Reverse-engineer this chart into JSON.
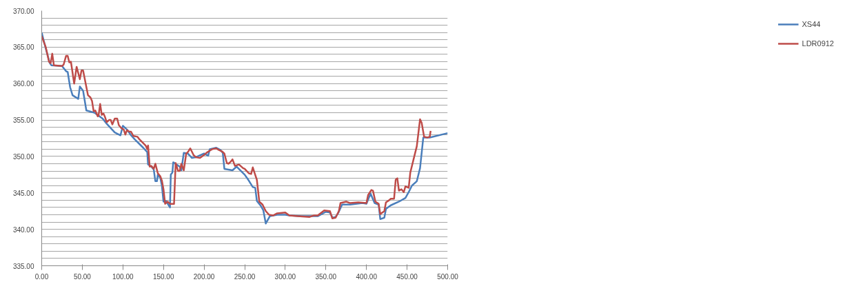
{
  "chart_data": {
    "type": "line",
    "xlim": [
      0,
      500
    ],
    "ylim": [
      335,
      370
    ],
    "xticks": [
      {
        "value": 0,
        "label": "0.00"
      },
      {
        "value": 50,
        "label": "50.00"
      },
      {
        "value": 100,
        "label": "100.00"
      },
      {
        "value": 150,
        "label": "150.00"
      },
      {
        "value": 200,
        "label": "200.00"
      },
      {
        "value": 250,
        "label": "250.00"
      },
      {
        "value": 300,
        "label": "300.00"
      },
      {
        "value": 350,
        "label": "350.00"
      },
      {
        "value": 400,
        "label": "400.00"
      },
      {
        "value": 450,
        "label": "450.00"
      },
      {
        "value": 500,
        "label": "500.00"
      }
    ],
    "yticks": [
      {
        "value": 335,
        "label": "335.00"
      },
      {
        "value": 336,
        "label": null
      },
      {
        "value": 337,
        "label": null
      },
      {
        "value": 338,
        "label": null
      },
      {
        "value": 339,
        "label": null
      },
      {
        "value": 340,
        "label": "340.00"
      },
      {
        "value": 341,
        "label": null
      },
      {
        "value": 342,
        "label": null
      },
      {
        "value": 343,
        "label": null
      },
      {
        "value": 344,
        "label": null
      },
      {
        "value": 345,
        "label": "345.00"
      },
      {
        "value": 346,
        "label": null
      },
      {
        "value": 347,
        "label": null
      },
      {
        "value": 348,
        "label": null
      },
      {
        "value": 349,
        "label": null
      },
      {
        "value": 350,
        "label": "350.00"
      },
      {
        "value": 351,
        "label": null
      },
      {
        "value": 352,
        "label": null
      },
      {
        "value": 353,
        "label": null
      },
      {
        "value": 354,
        "label": null
      },
      {
        "value": 355,
        "label": "355.00"
      },
      {
        "value": 356,
        "label": null
      },
      {
        "value": 357,
        "label": null
      },
      {
        "value": 358,
        "label": null
      },
      {
        "value": 359,
        "label": null
      },
      {
        "value": 360,
        "label": "360.00"
      },
      {
        "value": 361,
        "label": null
      },
      {
        "value": 362,
        "label": null
      },
      {
        "value": 363,
        "label": null
      },
      {
        "value": 364,
        "label": null
      },
      {
        "value": 365,
        "label": "365.00"
      },
      {
        "value": 366,
        "label": null
      },
      {
        "value": 367,
        "label": null
      },
      {
        "value": 368,
        "label": null
      },
      {
        "value": 369,
        "label": null
      },
      {
        "value": 370,
        "label": "370.00"
      }
    ],
    "grid": "y",
    "legend": "right",
    "marker": "none",
    "line_style": "solid",
    "series": [
      {
        "name": "XS44",
        "color": "#4a7ebb",
        "x": [
          0,
          5,
          10,
          12,
          25,
          30,
          32,
          35,
          38,
          45,
          47,
          51,
          55,
          65,
          75,
          80,
          90,
          97,
          100,
          105,
          110,
          115,
          125,
          130,
          131,
          135,
          138,
          140,
          142,
          143,
          146,
          148,
          150,
          153,
          158,
          159,
          161,
          162,
          170,
          172,
          175,
          180,
          185,
          190,
          200,
          205,
          207,
          215,
          220,
          223,
          225,
          235,
          240,
          250,
          255,
          260,
          263,
          265,
          270,
          273,
          276,
          281,
          290,
          300,
          305,
          320,
          340,
          350,
          355,
          358,
          362,
          365,
          370,
          380,
          395,
          400,
          405,
          410,
          415,
          417,
          422,
          424,
          430,
          440,
          448,
          452,
          456,
          462,
          466,
          470,
          478,
          500
        ],
        "values": [
          367,
          364.8,
          362.8,
          362.5,
          362.4,
          361.7,
          361.6,
          359.5,
          358.4,
          357.9,
          359.6,
          359,
          356.3,
          356,
          355.2,
          354.5,
          353.3,
          352.9,
          354.2,
          353.7,
          352.9,
          352.3,
          351.2,
          350.6,
          348.9,
          348.6,
          348.2,
          346.6,
          346.6,
          347.5,
          347.1,
          346,
          343.8,
          343.9,
          343,
          347.5,
          347.8,
          349.2,
          348.6,
          348.1,
          350.5,
          350.4,
          349.8,
          349.9,
          350.4,
          350.1,
          351,
          351.2,
          350.9,
          350.5,
          348.3,
          348.1,
          348.6,
          347.5,
          346.7,
          345.8,
          345.7,
          343.9,
          343.2,
          342.6,
          340.8,
          341.8,
          342,
          342,
          341.9,
          341.8,
          341.8,
          342.4,
          342.3,
          341.6,
          341.7,
          342.2,
          343.4,
          343.4,
          343.6,
          343.5,
          344.9,
          343.6,
          343.4,
          341.4,
          341.6,
          342.8,
          343.3,
          343.8,
          344.3,
          345.1,
          346,
          346.6,
          348.4,
          352.6,
          352.6,
          353.2
        ]
      },
      {
        "name": "LDR0912",
        "color": "#be4b48",
        "x": [
          0,
          5,
          9,
          11,
          13,
          15,
          25,
          27,
          30,
          32,
          34,
          36,
          40,
          43,
          47,
          49,
          51,
          54,
          57,
          60,
          62,
          64,
          66,
          69,
          70,
          72,
          74,
          76,
          78,
          80,
          83,
          85,
          87,
          90,
          93,
          95,
          98,
          101,
          103,
          105,
          108,
          110,
          113,
          118,
          120,
          128,
          130,
          131,
          133,
          135,
          138,
          140,
          143,
          146,
          148,
          150,
          152,
          155,
          158,
          163,
          165,
          168,
          170,
          172,
          175,
          178,
          180,
          183,
          187,
          190,
          195,
          200,
          203,
          207,
          210,
          215,
          218,
          222,
          225,
          228,
          230,
          233,
          235,
          238,
          243,
          248,
          250,
          255,
          258,
          260,
          262,
          265,
          268,
          272,
          276,
          280,
          285,
          290,
          300,
          305,
          315,
          330,
          335,
          340,
          348,
          355,
          358,
          362,
          366,
          368,
          375,
          380,
          390,
          400,
          402,
          406,
          408,
          411,
          415,
          417,
          422,
          424,
          428,
          430,
          434,
          436,
          438,
          440,
          443,
          446,
          448,
          452,
          454,
          458,
          462,
          466,
          468,
          471,
          475,
          478,
          479
        ],
        "values": [
          366.5,
          365,
          363,
          362.8,
          364.1,
          362.5,
          362.4,
          362.6,
          363.8,
          363.8,
          362.9,
          363,
          360,
          362.3,
          360.6,
          361.8,
          361.8,
          360.1,
          358.4,
          358.1,
          357.6,
          356.2,
          356.3,
          355.5,
          355.6,
          357.2,
          355.7,
          355.9,
          355.4,
          354.7,
          355,
          355,
          354.4,
          355.2,
          355.2,
          354.3,
          353.9,
          353.7,
          353,
          353.6,
          353.4,
          353.4,
          352.8,
          352.7,
          352.4,
          351.5,
          351,
          351.5,
          348.6,
          348.7,
          348.3,
          349,
          347.7,
          347.3,
          346.7,
          345.5,
          343.5,
          343.8,
          343.5,
          343.5,
          349.1,
          348,
          348,
          349,
          348.1,
          350.4,
          350.6,
          351.1,
          350.2,
          349.9,
          349.8,
          350.2,
          350.5,
          350.8,
          351,
          351.1,
          350.9,
          350.7,
          350.4,
          349.1,
          349,
          349.3,
          349.6,
          348.7,
          348.9,
          348.4,
          348.3,
          347.7,
          347.6,
          348.5,
          347.8,
          346.8,
          343.8,
          343.4,
          342.5,
          342,
          341.9,
          342.2,
          342.3,
          341.9,
          341.8,
          341.7,
          341.9,
          341.9,
          342.6,
          342.5,
          341.5,
          341.6,
          342.5,
          343.6,
          343.8,
          343.6,
          343.7,
          343.6,
          344.7,
          345.4,
          345.3,
          343.8,
          343.5,
          342.1,
          342.5,
          343.7,
          344,
          344.2,
          344.2,
          346.8,
          347,
          345.3,
          345.5,
          345.1,
          345.9,
          345.7,
          347.8,
          349.6,
          351.4,
          355.1,
          354.6,
          352.7,
          352.6,
          352.7,
          353.5
        ]
      }
    ]
  }
}
